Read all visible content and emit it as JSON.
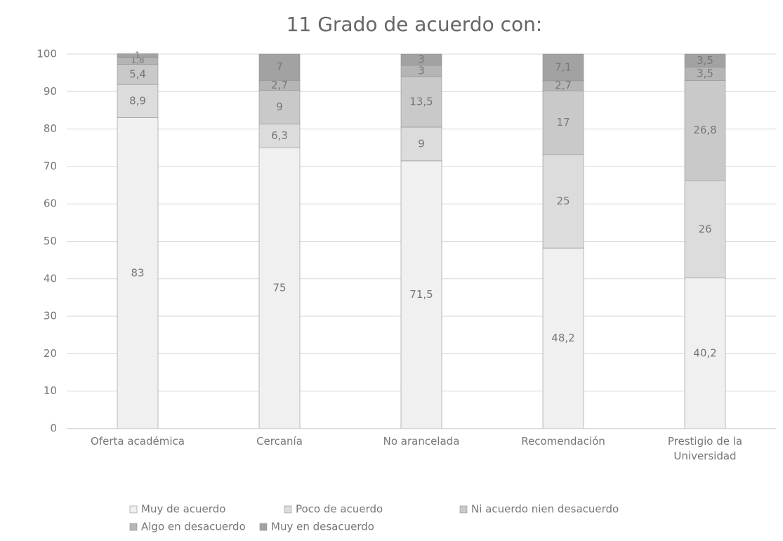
{
  "chart_data": {
    "type": "stacked_bar",
    "title": "11   Grado de acuerdo con:",
    "categories": [
      "Oferta académica",
      "Cercanía",
      "No arancelada",
      "Recomendación",
      "Prestigio de la Universidad"
    ],
    "series": [
      {
        "name": "Muy de acuerdo",
        "color": "#f0f0f0",
        "values": [
          83,
          75,
          71.5,
          48.2,
          40.2
        ],
        "value_labels": [
          "83",
          "75",
          "71,5",
          "48,2",
          "40,2"
        ]
      },
      {
        "name": "Poco de acuerdo",
        "color": "#dcdcdc",
        "values": [
          8.9,
          6.3,
          9,
          25,
          26
        ],
        "value_labels": [
          "8,9",
          "6,3",
          "9",
          "25",
          "26"
        ]
      },
      {
        "name": "Ni acuerdo nien desacuerdo",
        "color": "#c9c9c9",
        "values": [
          5.4,
          9,
          13.5,
          17,
          26.8
        ],
        "value_labels": [
          "5,4",
          "9",
          "13,5",
          "17",
          "26,8"
        ]
      },
      {
        "name": "Algo en desacuerdo",
        "color": "#b5b5b5",
        "values": [
          1.8,
          2.7,
          3,
          2.7,
          3.5
        ],
        "value_labels": [
          "1,8",
          "2,7",
          "3",
          "2,7",
          "3,5"
        ]
      },
      {
        "name": "Muy en desacuerdo",
        "color": "#a2a2a2",
        "values": [
          1,
          7,
          3,
          7.1,
          3.5
        ],
        "value_labels": [
          "1",
          "7",
          "3",
          "7,1",
          "3,5"
        ]
      }
    ],
    "ylim": [
      0,
      100
    ],
    "yticks": [
      0,
      10,
      20,
      30,
      40,
      50,
      60,
      70,
      80,
      90,
      100
    ],
    "grid": true,
    "legend": "bottom"
  }
}
